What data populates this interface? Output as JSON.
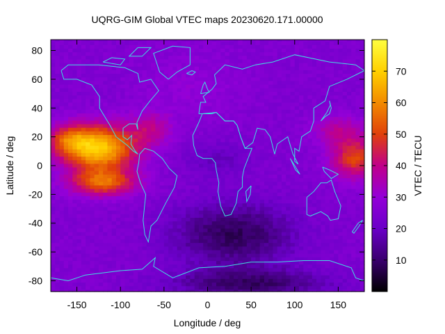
{
  "chart_data": {
    "type": "heatmap",
    "title": "UQRG-GIM Global VTEC maps 20230620.171.00000",
    "xlabel": "Longitude / deg",
    "ylabel": "Latitude / deg",
    "colorbar_label": "VTEC / TECU",
    "xlim": [
      -180,
      180
    ],
    "ylim": [
      -87.5,
      87.5
    ],
    "x_ticks": [
      -150,
      -100,
      -50,
      0,
      50,
      100,
      150
    ],
    "y_ticks": [
      -80,
      -60,
      -40,
      -20,
      0,
      20,
      40,
      60,
      80
    ],
    "colorbar_range": [
      0,
      80
    ],
    "colorbar_ticks": [
      10,
      20,
      30,
      40,
      50,
      60,
      70
    ],
    "colormap": [
      "#000000",
      "#3a006e",
      "#6a00c8",
      "#9400d8",
      "#c0008a",
      "#e0400a",
      "#f28a00",
      "#ffd000",
      "#ffff40"
    ],
    "coastline_color": "#40e0e0",
    "grid": false,
    "grid_resolution": {
      "dlon": 5,
      "dlat": 2.5
    },
    "features": [
      {
        "lon": -125,
        "lat": 12,
        "peak_vtec": 77,
        "description": "equatorial anomaly crest over eastern Pacific"
      },
      {
        "lon": 155,
        "lat": 5,
        "peak_vtec": 50,
        "description": "enhancement over western Pacific"
      }
    ],
    "background_vtec": 25,
    "night_minimum_vtec": 5
  }
}
